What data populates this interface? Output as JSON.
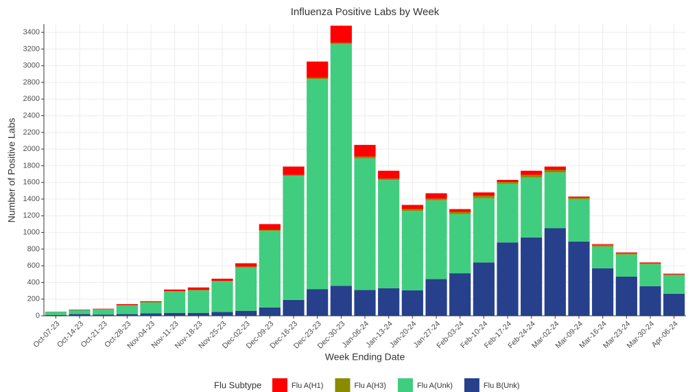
{
  "chart_data": {
    "type": "stacked_bar",
    "title": "Influenza Positive Labs by Week",
    "x_label": "Week Ending Date",
    "y_label": "Number of Positive Labs",
    "legend_title": "Flu Subtype",
    "legend_position": "bottom",
    "grid": true,
    "categories": [
      "Oct-07-23",
      "Oct-14-23",
      "Oct-21-23",
      "Oct-28-23",
      "Nov-04-23",
      "Nov-11-23",
      "Nov-18-23",
      "Nov-25-23",
      "Dec-02-23",
      "Dec-09-23",
      "Dec-16-23",
      "Dec-23-23",
      "Dec-30-23",
      "Jan-06-24",
      "Jan-13-24",
      "Jan-20-24",
      "Jan-27-24",
      "Feb-03-24",
      "Feb-10-24",
      "Feb-17-24",
      "Feb-24-24",
      "Mar-02-24",
      "Mar-09-24",
      "Mar-16-24",
      "Mar-23-24",
      "Mar-30-24",
      "Apr-06-24"
    ],
    "series": [
      {
        "name": "Flu A(H1)",
        "color": "#ff0000",
        "values": [
          2,
          5,
          6,
          12,
          10,
          20,
          30,
          25,
          40,
          70,
          100,
          195,
          205,
          140,
          95,
          50,
          65,
          35,
          40,
          25,
          50,
          40,
          15,
          10,
          10,
          10,
          10
        ]
      },
      {
        "name": "Flu A(H3)",
        "color": "#8b8b00",
        "values": [
          0,
          0,
          2,
          3,
          5,
          5,
          5,
          5,
          10,
          10,
          10,
          15,
          15,
          20,
          15,
          20,
          20,
          25,
          30,
          20,
          30,
          30,
          15,
          20,
          15,
          10,
          5
        ]
      },
      {
        "name": "Flu A(Unk)",
        "color": "#41cd7f",
        "values": [
          38,
          50,
          62,
          105,
          130,
          255,
          270,
          370,
          520,
          920,
          1490,
          2520,
          2900,
          1580,
          1300,
          955,
          945,
          710,
          770,
          705,
          720,
          670,
          510,
          260,
          265,
          265,
          225
        ]
      },
      {
        "name": "Flu B(Unk)",
        "color": "#27408b",
        "values": [
          10,
          20,
          15,
          20,
          30,
          35,
          35,
          45,
          60,
          100,
          190,
          320,
          360,
          310,
          330,
          305,
          440,
          510,
          640,
          880,
          940,
          1050,
          890,
          570,
          470,
          355,
          265
        ]
      }
    ],
    "ylim": [
      0,
      3500
    ],
    "yticks": [
      0,
      200,
      400,
      600,
      800,
      1000,
      1200,
      1400,
      1600,
      1800,
      2000,
      2200,
      2400,
      2600,
      2800,
      3000,
      3200,
      3400
    ]
  }
}
